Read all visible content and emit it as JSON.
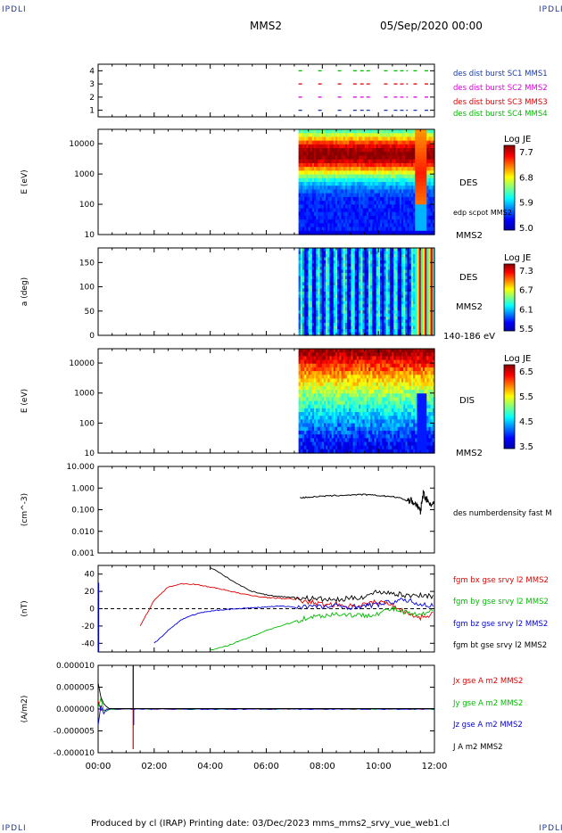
{
  "header": {
    "logo_left": "IPDLI",
    "logo_right": "IPDLI",
    "title": "MMS2",
    "date": "05/Sep/2020 00:00"
  },
  "footer": {
    "text": "Produced by cl (IRAP)   Printing date: 03/Dec/2023   mms_mms2_srvy_vue_web1.cl",
    "logo_left": "IPDLI",
    "logo_right": "IPDLI"
  },
  "time_axis": {
    "ticks": [
      "00:00",
      "02:00",
      "04:00",
      "06:00",
      "08:00",
      "10:00",
      "12:00"
    ],
    "range_hours": [
      0,
      12
    ]
  },
  "colors": {
    "red": "#dd0000",
    "green": "#00bb00",
    "blue": "#0000dd",
    "black": "#000000",
    "magenta": "#dd00dd",
    "navy": "#1a3aa8"
  },
  "chart_data": [
    {
      "type": "scatter",
      "id": "coverage",
      "ylabel": "",
      "yticks": [
        "1",
        "2",
        "3",
        "4"
      ],
      "ylim": [
        0.5,
        4.5
      ],
      "legend": [
        {
          "label": "des dist burst SC1 MMS1",
          "color": "#1a3aa8",
          "level": 1
        },
        {
          "label": "des dist burst SC2 MMS2",
          "color": "#dd00dd",
          "level": 2
        },
        {
          "label": "des dist burst SC3 MMS3",
          "color": "#dd0000",
          "level": 3
        },
        {
          "label": "des dist burst SC4 MMS4",
          "color": "#00bb00",
          "level": 4
        }
      ],
      "segments_hours": [
        [
          7.15,
          7.3
        ],
        [
          7.85,
          8.0
        ],
        [
          8.55,
          8.7
        ],
        [
          9.1,
          9.25
        ],
        [
          9.35,
          9.8
        ],
        [
          10.2,
          10.35
        ],
        [
          10.55,
          11.05
        ],
        [
          11.25,
          11.4
        ],
        [
          11.65,
          11.8
        ]
      ]
    },
    {
      "type": "heatmap",
      "id": "des-energy",
      "ylabel": "E (eV)",
      "yticks": [
        "10",
        "100",
        "1000",
        "10000"
      ],
      "ylim": [
        10,
        30000
      ],
      "label": "DES",
      "sublabel": "edp scpot MMS2",
      "sc": "MMS2",
      "colorbar": {
        "title": "Log JE",
        "ticks": [
          "7.7",
          "6.8",
          "5.9",
          "5.0"
        ],
        "range": [
          5.0,
          7.7
        ]
      },
      "start_hour": 7.15
    },
    {
      "type": "heatmap",
      "id": "des-pitch",
      "ylabel": "a (deg)",
      "yticks": [
        "0",
        "50",
        "100",
        "150"
      ],
      "ylim": [
        0,
        180
      ],
      "label": "DES",
      "sc": "MMS2",
      "energy_label": "140-186 eV",
      "colorbar": {
        "title": "Log JE",
        "ticks": [
          "7.3",
          "6.7",
          "6.1",
          "5.5"
        ],
        "range": [
          5.5,
          7.3
        ]
      },
      "start_hour": 7.15
    },
    {
      "type": "heatmap",
      "id": "dis-energy",
      "ylabel": "E (eV)",
      "yticks": [
        "10",
        "100",
        "1000",
        "10000"
      ],
      "ylim": [
        10,
        30000
      ],
      "label": "DIS",
      "sc": "MMS2",
      "colorbar": {
        "title": "Log JE",
        "ticks": [
          "6.5",
          "5.5",
          "4.5",
          "3.5"
        ],
        "range": [
          3.5,
          6.5
        ]
      },
      "start_hour": 7.15
    },
    {
      "type": "line",
      "id": "density",
      "ylabel": "(cm^-3)",
      "yticks": [
        "0.001",
        "0.010",
        "0.100",
        "1.000",
        "10.000"
      ],
      "ylim": [
        0.001,
        10
      ],
      "series": [
        {
          "name": "des numberdensity fast M",
          "color": "#000000"
        }
      ],
      "x": [
        7.2,
        7.5,
        8.0,
        8.5,
        9.0,
        9.5,
        10.0,
        10.5,
        11.0,
        11.2,
        11.4,
        11.5,
        11.6,
        11.8,
        12.0
      ],
      "y": [
        0.35,
        0.38,
        0.42,
        0.45,
        0.48,
        0.5,
        0.45,
        0.4,
        0.3,
        0.25,
        0.15,
        0.08,
        0.6,
        0.2,
        0.2
      ]
    },
    {
      "type": "line",
      "id": "magnetic-field",
      "ylabel": "(nT)",
      "yticks": [
        "-40",
        "-20",
        "0",
        "20",
        "40"
      ],
      "ylim": [
        -50,
        50
      ],
      "x": [
        0.0,
        0.5,
        1.0,
        1.5,
        2.0,
        2.5,
        3.0,
        3.5,
        4.0,
        4.5,
        5.0,
        5.5,
        6.0,
        6.5,
        7.0,
        7.5,
        8.0,
        8.5,
        9.0,
        9.5,
        10.0,
        10.5,
        11.0,
        11.5,
        12.0
      ],
      "series": [
        {
          "name": "fgm bx gse srvy l2 MMS2",
          "color": "#dd0000",
          "values": [
            null,
            null,
            null,
            -20,
            10,
            25,
            29,
            28,
            25,
            22,
            18,
            15,
            13,
            12,
            11,
            8,
            5,
            5,
            3,
            5,
            8,
            5,
            -5,
            -10,
            -5
          ]
        },
        {
          "name": "fgm by gse srvy l2 MMS2",
          "color": "#00bb00",
          "values": [
            null,
            null,
            null,
            null,
            null,
            null,
            null,
            null,
            -48,
            -44,
            -38,
            -32,
            -25,
            -20,
            -15,
            -10,
            -8,
            -6,
            -7,
            -8,
            -5,
            0,
            -5,
            -8,
            -2
          ]
        },
        {
          "name": "fgm bz gse srvy l2 MMS2",
          "color": "#0000dd",
          "values": [
            null,
            null,
            null,
            null,
            -40,
            -25,
            -12,
            -6,
            -3,
            -1,
            0,
            1,
            2,
            3,
            2,
            3,
            2,
            3,
            2,
            3,
            5,
            8,
            10,
            5,
            3
          ]
        },
        {
          "name": "fgm bt gse srvy l2 MMS2",
          "color": "#000000",
          "values": [
            null,
            null,
            null,
            null,
            null,
            null,
            null,
            null,
            48,
            38,
            28,
            20,
            16,
            14,
            13,
            12,
            11,
            10,
            12,
            14,
            20,
            18,
            15,
            16,
            14
          ]
        }
      ]
    },
    {
      "type": "line",
      "id": "current-density",
      "ylabel": "(A/m2)",
      "yticks": [
        "-0.000010",
        "-0.000005",
        "0.000000",
        "0.000005",
        "0.000010"
      ],
      "ylim": [
        -1e-05,
        1e-05
      ],
      "series": [
        {
          "name": "Jx gse A m2 MMS2",
          "color": "#dd0000"
        },
        {
          "name": "Jy gse A m2 MMS2",
          "color": "#00bb00"
        },
        {
          "name": "Jz gse A m2 MMS2",
          "color": "#0000dd"
        },
        {
          "name": "J A m2 MMS2",
          "color": "#000000"
        }
      ]
    }
  ]
}
